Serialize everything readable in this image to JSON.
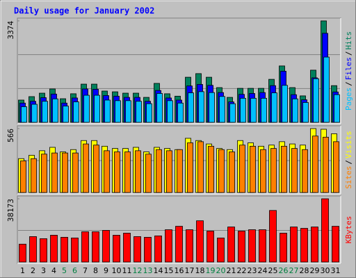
{
  "title": "Daily usage for January 2002",
  "title_color": "#0000ff",
  "legend_separator": "/",
  "chart_data": [
    {
      "type": "bar",
      "categories": [
        "1",
        "2",
        "3",
        "4",
        "5",
        "6",
        "7",
        "8",
        "9",
        "10",
        "11",
        "12",
        "13",
        "14",
        "15",
        "16",
        "17",
        "18",
        "19",
        "20",
        "21",
        "22",
        "23",
        "24",
        "25",
        "26",
        "27",
        "28",
        "29",
        "30",
        "31"
      ],
      "category_colors": [
        "#000000",
        "#000000",
        "#000000",
        "#000000",
        "#008040",
        "#008040",
        "#000000",
        "#000000",
        "#000000",
        "#000000",
        "#000000",
        "#008040",
        "#008040",
        "#000000",
        "#000000",
        "#000000",
        "#000000",
        "#000000",
        "#008040",
        "#008040",
        "#000000",
        "#000000",
        "#000000",
        "#000000",
        "#000000",
        "#008040",
        "#008040",
        "#000000",
        "#000000",
        "#000000",
        "#000000"
      ],
      "series": [
        {
          "name": "Hits",
          "color": "#00805c",
          "values": [
            740,
            855,
            970,
            1110,
            785,
            950,
            1270,
            1270,
            1040,
            1015,
            970,
            970,
            830,
            1295,
            950,
            870,
            1500,
            1620,
            1500,
            1155,
            830,
            1130,
            1130,
            1130,
            1430,
            1875,
            1155,
            880,
            1735,
            3374,
            1220
          ]
        },
        {
          "name": "Files",
          "color": "#0000ff",
          "values": [
            640,
            700,
            820,
            940,
            640,
            810,
            1110,
            1100,
            890,
            870,
            830,
            830,
            700,
            1060,
            810,
            740,
            1210,
            1260,
            1230,
            990,
            680,
            930,
            960,
            990,
            1220,
            1700,
            920,
            750,
            1480,
            2960,
            1010
          ]
        },
        {
          "name": "Pages",
          "color": "#00c0ff",
          "values": [
            520,
            600,
            700,
            780,
            540,
            680,
            900,
            900,
            740,
            720,
            720,
            700,
            620,
            960,
            720,
            640,
            980,
            1020,
            990,
            860,
            620,
            800,
            800,
            800,
            980,
            1230,
            780,
            660,
            1450,
            2170,
            920
          ]
        }
      ],
      "ylim": [
        0,
        3374
      ],
      "yticks": [
        3374
      ]
    },
    {
      "type": "bar",
      "series": [
        {
          "name": "Visits",
          "color": "#ffff00",
          "values": [
            300,
            330,
            370,
            400,
            360,
            380,
            460,
            460,
            410,
            390,
            390,
            400,
            360,
            400,
            390,
            380,
            480,
            460,
            430,
            390,
            380,
            460,
            440,
            410,
            420,
            450,
            430,
            420,
            566,
            560,
            520
          ]
        },
        {
          "name": "Sites",
          "color": "#ff8000",
          "values": [
            280,
            300,
            340,
            350,
            350,
            350,
            430,
            420,
            370,
            360,
            360,
            370,
            340,
            380,
            370,
            380,
            440,
            450,
            410,
            380,
            360,
            420,
            410,
            380,
            390,
            410,
            390,
            380,
            500,
            490,
            450
          ]
        }
      ],
      "ylim": [
        0,
        566
      ],
      "yticks": [
        566
      ]
    },
    {
      "type": "bar",
      "series": [
        {
          "name": "KBytes",
          "color": "#ff0000",
          "values": [
            10790,
            15350,
            14100,
            16180,
            14940,
            14520,
            18260,
            18260,
            19090,
            16180,
            17430,
            15350,
            14940,
            15770,
            19500,
            21580,
            19500,
            24900,
            18670,
            14520,
            21160,
            18670,
            19500,
            19500,
            31120,
            17430,
            21160,
            20330,
            21160,
            38173,
            21580
          ]
        }
      ],
      "ylim": [
        0,
        38173
      ],
      "yticks": [
        38173
      ]
    }
  ]
}
